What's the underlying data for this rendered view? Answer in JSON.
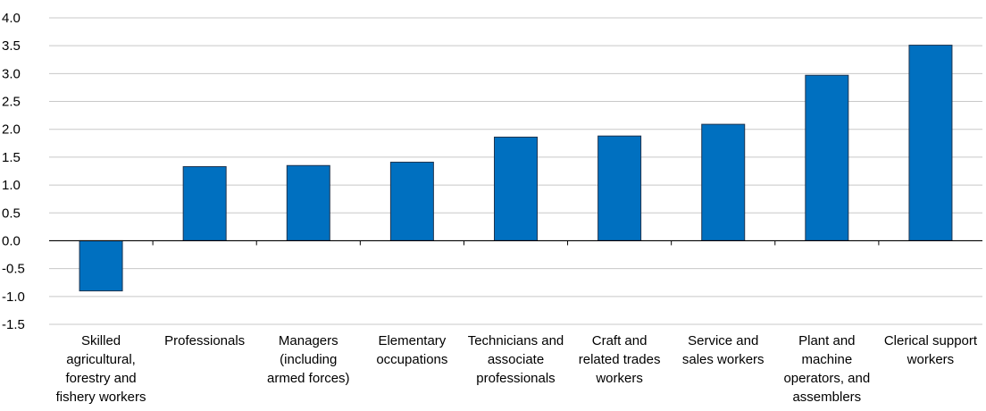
{
  "chart_data": {
    "type": "bar",
    "categories": [
      "Skilled agricultural, forestry and fishery workers",
      "Professionals",
      "Managers (including armed forces)",
      "Elementary occupations",
      "Technicians and associate professionals",
      "Craft and related trades workers",
      "Service and sales workers",
      "Plant and machine operators, and assemblers",
      "Clerical support workers"
    ],
    "values": [
      -0.9,
      1.33,
      1.35,
      1.41,
      1.86,
      1.88,
      2.09,
      2.97,
      3.51
    ],
    "color": "#0070c0",
    "ylim": [
      -1.5,
      4.0
    ],
    "yticks": [
      {
        "value": -1.5,
        "label": "-1.5"
      },
      {
        "value": -1,
        "label": "-1.0"
      },
      -0.5,
      {
        "value": 0,
        "label": "0.0"
      },
      0.5,
      {
        "value": 1,
        "label": "1.0"
      },
      1.5,
      {
        "value": 2,
        "label": "2.0"
      },
      2.5,
      {
        "value": 3,
        "label": "3.0"
      },
      3.5,
      {
        "value": 4,
        "label": "4.0"
      }
    ],
    "grid": true
  }
}
